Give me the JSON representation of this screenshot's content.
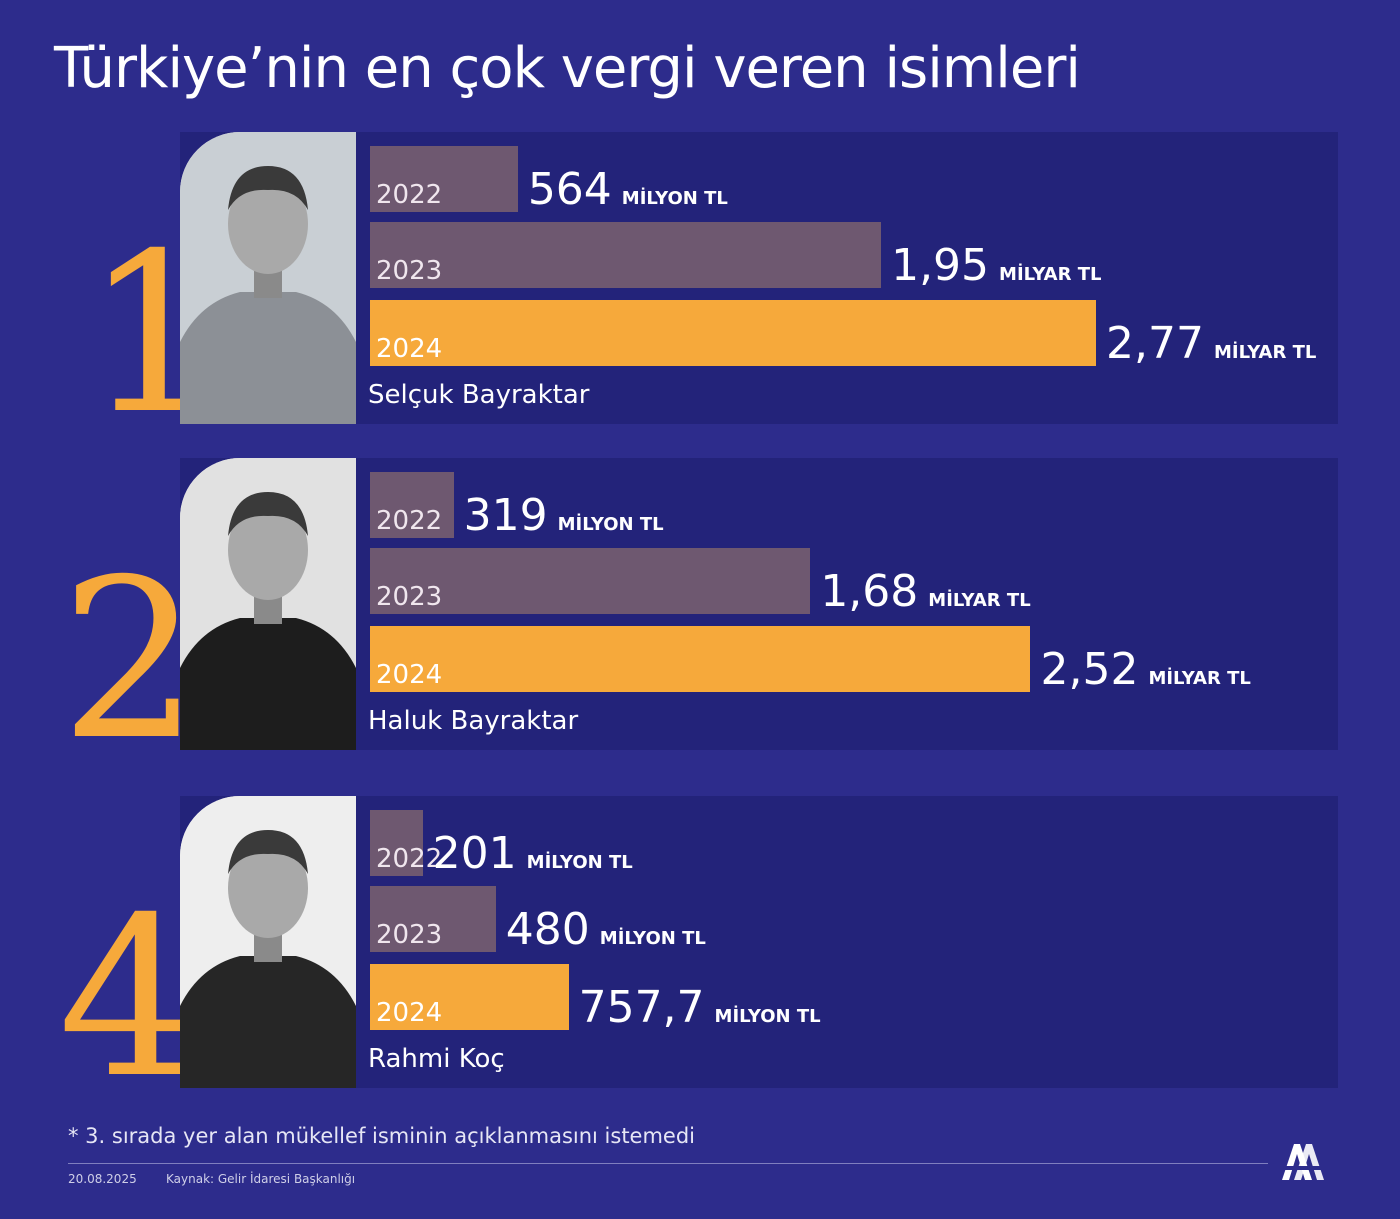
{
  "title": "Türkiye’nin en çok vergi veren isimleri",
  "colors": {
    "background": "#2d2c8c",
    "panel": "#23237a",
    "bar_past": "#6e5870",
    "bar_2024": "#f6a93b",
    "rank": "#f6a93b"
  },
  "chart_data": {
    "type": "bar",
    "orientation": "horizontal",
    "categories": [
      "2022",
      "2023",
      "2024"
    ],
    "groups": [
      {
        "rank": "1",
        "name": "Selçuk Bayraktar",
        "photo_icon": "person-photo-icon",
        "bars": [
          {
            "year": "2022",
            "value_mn_tl": 564,
            "label": "564",
            "unit": "MİLYON TL"
          },
          {
            "year": "2023",
            "value_mn_tl": 1950,
            "label": "1,95",
            "unit": "MİLYAR TL"
          },
          {
            "year": "2024",
            "value_mn_tl": 2770,
            "label": "2,77",
            "unit": "MİLYAR TL"
          }
        ]
      },
      {
        "rank": "2",
        "name": "Haluk Bayraktar",
        "photo_icon": "person-photo-icon",
        "bars": [
          {
            "year": "2022",
            "value_mn_tl": 319,
            "label": "319",
            "unit": "MİLYON TL"
          },
          {
            "year": "2023",
            "value_mn_tl": 1680,
            "label": "1,68",
            "unit": "MİLYAR TL"
          },
          {
            "year": "2024",
            "value_mn_tl": 2520,
            "label": "2,52",
            "unit": "MİLYAR TL"
          }
        ]
      },
      {
        "rank": "4",
        "name": "Rahmi Koç",
        "photo_icon": "person-photo-icon",
        "bars": [
          {
            "year": "2022",
            "value_mn_tl": 201,
            "label": "201",
            "unit": "MİLYON TL"
          },
          {
            "year": "2023",
            "value_mn_tl": 480,
            "label": "480",
            "unit": "MİLYON TL"
          },
          {
            "year": "2024",
            "value_mn_tl": 757.7,
            "label": "757,7",
            "unit": "MİLYON TL"
          }
        ]
      }
    ]
  },
  "footnote": "*  3. sırada yer alan mükellef isminin açıklanmasını istemedi",
  "date": "20.08.2025",
  "source": "Kaynak: Gelir İdaresi Başkanlığı",
  "logo_icon": "aa-logo-icon"
}
